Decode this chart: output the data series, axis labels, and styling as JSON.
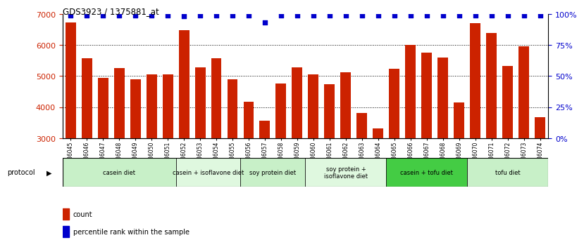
{
  "title": "GDS3923 / 1375881_at",
  "samples": [
    "GSM586045",
    "GSM586046",
    "GSM586047",
    "GSM586048",
    "GSM586049",
    "GSM586050",
    "GSM586051",
    "GSM586052",
    "GSM586053",
    "GSM586054",
    "GSM586055",
    "GSM586056",
    "GSM586057",
    "GSM586058",
    "GSM586059",
    "GSM586060",
    "GSM586061",
    "GSM586062",
    "GSM586063",
    "GSM586064",
    "GSM586065",
    "GSM586066",
    "GSM586067",
    "GSM586068",
    "GSM586069",
    "GSM586070",
    "GSM586071",
    "GSM586072",
    "GSM586073",
    "GSM586074"
  ],
  "counts": [
    6720,
    5580,
    4950,
    5250,
    4900,
    5050,
    5050,
    6480,
    5280,
    5580,
    4900,
    4180,
    3560,
    4760,
    5280,
    5050,
    4740,
    5120,
    3820,
    3320,
    5230,
    6000,
    5760,
    5600,
    4150,
    6700,
    6380,
    5320,
    5960,
    3680
  ],
  "percentile_ranks": [
    99,
    99,
    99,
    99,
    99,
    99,
    99,
    98,
    99,
    99,
    99,
    99,
    93,
    99,
    99,
    99,
    99,
    99,
    99,
    99,
    99,
    99,
    99,
    99,
    99,
    99,
    99,
    99,
    99,
    99
  ],
  "groups": [
    {
      "label": "casein diet",
      "start": 0,
      "end": 7,
      "color": "#c8f0c8"
    },
    {
      "label": "casein + isoflavone diet",
      "start": 7,
      "end": 11,
      "color": "#dff8df"
    },
    {
      "label": "soy protein diet",
      "start": 11,
      "end": 15,
      "color": "#c8f0c8"
    },
    {
      "label": "soy protein +\nisoflavone diet",
      "start": 15,
      "end": 20,
      "color": "#dff8df"
    },
    {
      "label": "casein + tofu diet",
      "start": 20,
      "end": 25,
      "color": "#44cc44"
    },
    {
      "label": "tofu diet",
      "start": 25,
      "end": 30,
      "color": "#c8f0c8"
    }
  ],
  "bar_color": "#cc2200",
  "percentile_color": "#0000cc",
  "ylim_left": [
    3000,
    7000
  ],
  "ylim_right": [
    0,
    100
  ],
  "yticks_left": [
    3000,
    4000,
    5000,
    6000,
    7000
  ],
  "yticks_right": [
    0,
    25,
    50,
    75,
    100
  ],
  "grid_values": [
    4000,
    5000,
    6000
  ],
  "background_color": "#ffffff",
  "plot_bg": "#ffffff"
}
